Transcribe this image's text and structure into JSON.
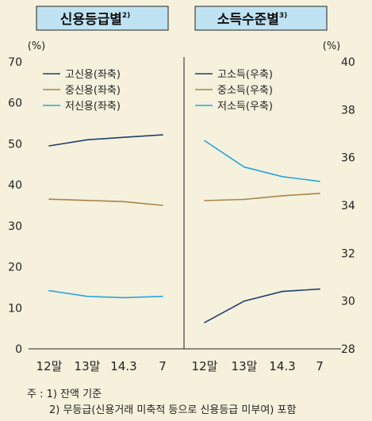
{
  "chart_data": [
    {
      "type": "line",
      "title": "신용등급별",
      "title_footnote": "2)",
      "y_unit_label": "(%)",
      "y_axis": "left",
      "ylim": [
        0,
        70
      ],
      "yticks": [
        "0",
        "10",
        "20",
        "30",
        "40",
        "50",
        "60",
        "70"
      ],
      "categories": [
        "12말",
        "13말",
        "14.3",
        "7"
      ],
      "series": [
        {
          "name": "고신용(좌축)",
          "color": "#1f3f6e",
          "values": [
            49.5,
            51.0,
            51.6,
            52.2
          ]
        },
        {
          "name": "중신용(좌축)",
          "color": "#a8844a",
          "values": [
            36.5,
            36.2,
            35.9,
            35.0
          ]
        },
        {
          "name": "저신용(좌축)",
          "color": "#2aa5dc",
          "values": [
            14.2,
            12.8,
            12.5,
            12.8
          ]
        }
      ],
      "legend_position": "top-left",
      "grid": false
    },
    {
      "type": "line",
      "title": "소득수준별",
      "title_footnote": "3)",
      "y_unit_label": "(%)",
      "y_axis": "right",
      "ylim": [
        28,
        40
      ],
      "yticks": [
        "28",
        "30",
        "32",
        "34",
        "36",
        "38",
        "40"
      ],
      "categories": [
        "12말",
        "13말",
        "14.3",
        "7"
      ],
      "series": [
        {
          "name": "고소득(우축)",
          "color": "#1f3f6e",
          "values": [
            29.1,
            30.0,
            30.4,
            30.5
          ]
        },
        {
          "name": "중소득(우축)",
          "color": "#a8844a",
          "values": [
            34.2,
            34.25,
            34.4,
            34.5
          ]
        },
        {
          "name": "저소득(우축)",
          "color": "#2aa5dc",
          "values": [
            36.7,
            35.6,
            35.2,
            35.0
          ]
        }
      ],
      "legend_position": "top-left",
      "grid": false
    }
  ],
  "notes": {
    "line1": "주 : 1) 잔액 기준",
    "line2": "2) 무등급(신용거래 미축적 등으로 신용등급 미부여) 포함"
  },
  "colors": {
    "background": "#f5f1dd",
    "title_box": "#bfe3f3"
  }
}
